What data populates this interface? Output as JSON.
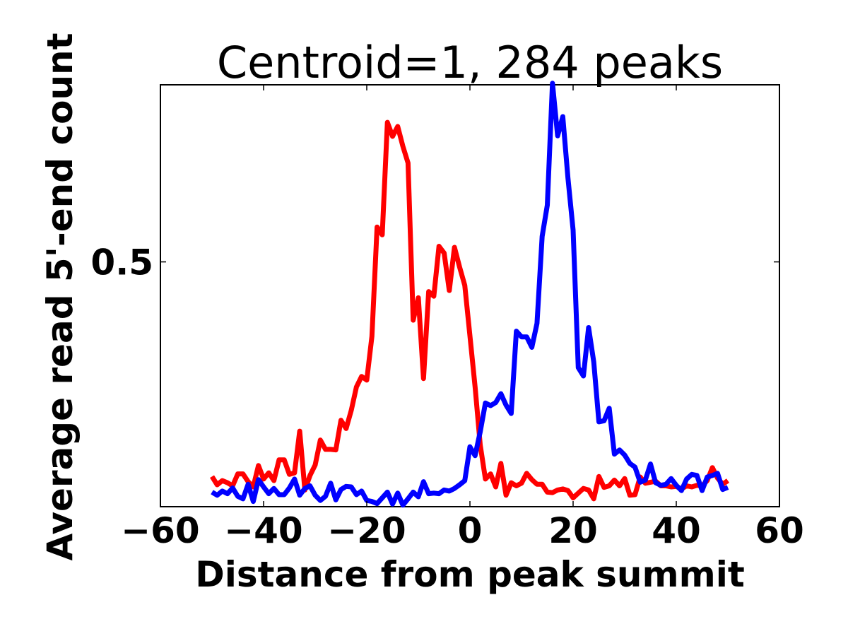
{
  "chart_data": {
    "type": "line",
    "title": "Centroid=1, 284 peaks",
    "xlabel": "Distance from peak summit",
    "ylabel": "Average read 5'-end count",
    "xlim": [
      -60,
      60
    ],
    "ylim": [
      0.03,
      0.84
    ],
    "xticks": [
      -60,
      -40,
      -20,
      0,
      20,
      40,
      60
    ],
    "xtick_labels": [
      "−60",
      "−40",
      "−20",
      "0",
      "20",
      "40",
      "60"
    ],
    "yticks": [
      0.5
    ],
    "ytick_labels": [
      "0.5"
    ],
    "grid": false,
    "series": [
      {
        "color": "#ff0000",
        "x": [
          -50,
          -49,
          -48,
          -47,
          -46,
          -45,
          -44,
          -43,
          -42,
          -41,
          -40,
          -39,
          -38,
          -37,
          -36,
          -35,
          -34,
          -33,
          -32,
          -31,
          -30,
          -29,
          -28,
          -27,
          -26,
          -25,
          -24,
          -23,
          -22,
          -21,
          -20,
          -19,
          -18,
          -17,
          -16,
          -15,
          -14,
          -13,
          -12,
          -11,
          -10,
          -9,
          -8,
          -7,
          -6,
          -5,
          -4,
          -3,
          -2,
          -1,
          0,
          1,
          2,
          3,
          4,
          5,
          6,
          7,
          8,
          9,
          10,
          11,
          12,
          13,
          14,
          15,
          16,
          17,
          18,
          19,
          20,
          21,
          22,
          23,
          24,
          25,
          26,
          27,
          28,
          29,
          30,
          31,
          32,
          33,
          34,
          35,
          36,
          37,
          38,
          39,
          40,
          41,
          42,
          43,
          44,
          45,
          46,
          47,
          48,
          49,
          50
        ],
        "values": [
          0.088,
          0.072,
          0.08,
          0.076,
          0.07,
          0.093,
          0.093,
          0.078,
          0.068,
          0.109,
          0.083,
          0.095,
          0.08,
          0.12,
          0.12,
          0.092,
          0.095,
          0.175,
          0.062,
          0.09,
          0.11,
          0.158,
          0.14,
          0.14,
          0.139,
          0.196,
          0.18,
          0.215,
          0.26,
          0.28,
          0.273,
          0.357,
          0.567,
          0.552,
          0.768,
          0.741,
          0.76,
          0.722,
          0.69,
          0.388,
          0.431,
          0.276,
          0.443,
          0.434,
          0.53,
          0.517,
          0.445,
          0.528,
          0.49,
          0.455,
          0.358,
          0.26,
          0.148,
          0.083,
          0.093,
          0.068,
          0.113,
          0.052,
          0.076,
          0.07,
          0.075,
          0.094,
          0.082,
          0.073,
          0.073,
          0.058,
          0.057,
          0.062,
          0.064,
          0.061,
          0.047,
          0.056,
          0.065,
          0.062,
          0.045,
          0.088,
          0.067,
          0.07,
          0.081,
          0.07,
          0.084,
          0.052,
          0.053,
          0.087,
          0.075,
          0.077,
          0.079,
          0.07,
          0.07,
          0.068,
          0.069,
          0.064,
          0.07,
          0.068,
          0.071,
          0.07,
          0.08,
          0.105,
          0.085,
          0.073,
          0.08
        ]
      },
      {
        "color": "#0000ff",
        "x": [
          -50,
          -49,
          -48,
          -47,
          -46,
          -45,
          -44,
          -43,
          -42,
          -41,
          -40,
          -39,
          -38,
          -37,
          -36,
          -35,
          -34,
          -33,
          -32,
          -31,
          -30,
          -29,
          -28,
          -27,
          -26,
          -25,
          -24,
          -23,
          -22,
          -21,
          -20,
          -19,
          -18,
          -17,
          -16,
          -15,
          -14,
          -13,
          -12,
          -11,
          -10,
          -9,
          -8,
          -7,
          -6,
          -5,
          -4,
          -3,
          -2,
          -1,
          0,
          1,
          2,
          3,
          4,
          5,
          6,
          7,
          8,
          9,
          10,
          11,
          12,
          13,
          14,
          15,
          16,
          17,
          18,
          19,
          20,
          21,
          22,
          23,
          24,
          25,
          26,
          27,
          28,
          29,
          30,
          31,
          32,
          33,
          34,
          35,
          36,
          37,
          38,
          39,
          40,
          41,
          42,
          43,
          44,
          45,
          46,
          47,
          48,
          49,
          50
        ],
        "values": [
          0.058,
          0.052,
          0.06,
          0.055,
          0.066,
          0.05,
          0.045,
          0.073,
          0.04,
          0.082,
          0.068,
          0.055,
          0.065,
          0.053,
          0.053,
          0.066,
          0.083,
          0.052,
          0.065,
          0.07,
          0.052,
          0.042,
          0.05,
          0.075,
          0.043,
          0.063,
          0.069,
          0.068,
          0.053,
          0.06,
          0.042,
          0.04,
          0.036,
          0.047,
          0.058,
          0.035,
          0.056,
          0.033,
          0.045,
          0.058,
          0.049,
          0.078,
          0.055,
          0.056,
          0.055,
          0.062,
          0.06,
          0.065,
          0.072,
          0.08,
          0.145,
          0.128,
          0.174,
          0.229,
          0.224,
          0.23,
          0.247,
          0.225,
          0.209,
          0.367,
          0.356,
          0.356,
          0.336,
          0.382,
          0.549,
          0.609,
          0.843,
          0.742,
          0.779,
          0.661,
          0.561,
          0.297,
          0.281,
          0.374,
          0.308,
          0.193,
          0.195,
          0.219,
          0.131,
          0.139,
          0.129,
          0.113,
          0.106,
          0.077,
          0.081,
          0.112,
          0.076,
          0.071,
          0.073,
          0.084,
          0.071,
          0.061,
          0.083,
          0.092,
          0.09,
          0.061,
          0.087,
          0.09,
          0.094,
          0.063,
          0.067
        ]
      }
    ]
  }
}
